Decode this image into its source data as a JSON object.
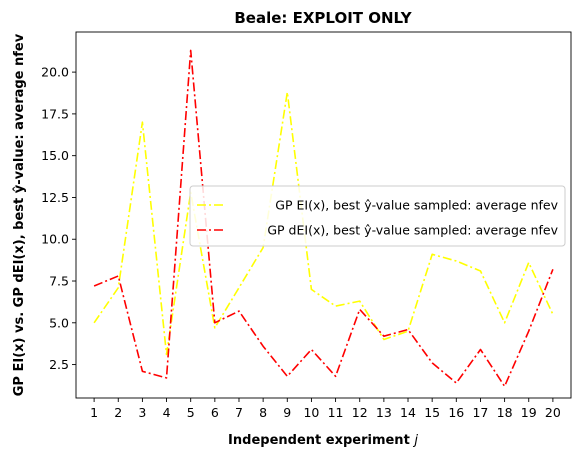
{
  "chart_data": {
    "type": "line",
    "title": "Beale: EXPLOIT ONLY",
    "xlabel": "Independent experiment j",
    "ylabel": "GP EI(x) vs. GP dEI(x), best ŷ-value: average nfev",
    "xlim": [
      0.25,
      20.75
    ],
    "ylim": [
      0.5,
      22.4
    ],
    "x": [
      1,
      2,
      3,
      4,
      5,
      6,
      7,
      8,
      9,
      10,
      11,
      12,
      13,
      14,
      15,
      16,
      17,
      18,
      19,
      20
    ],
    "xticks": [
      "1",
      "2",
      "3",
      "4",
      "5",
      "6",
      "7",
      "8",
      "9",
      "10",
      "11",
      "12",
      "13",
      "14",
      "15",
      "16",
      "17",
      "18",
      "19",
      "20"
    ],
    "yticks": [
      {
        "value": 2.5,
        "label": "2.5"
      },
      {
        "value": 5.0,
        "label": "5.0"
      },
      {
        "value": 7.5,
        "label": "7.5"
      },
      {
        "value": 10.0,
        "label": "10.0"
      },
      {
        "value": 12.5,
        "label": "12.5"
      },
      {
        "value": 15.0,
        "label": "15.0"
      },
      {
        "value": 17.5,
        "label": "17.5"
      },
      {
        "value": 20.0,
        "label": "20.0"
      }
    ],
    "legend_position": "center-right",
    "grid": false,
    "series": [
      {
        "name": "GP EI(x), best ŷ-value sampled: average nfev",
        "color": "#ffff00",
        "linestyle": "dashdot",
        "values": [
          5.0,
          7.1,
          17.0,
          3.1,
          12.8,
          4.7,
          7.1,
          9.5,
          18.8,
          7.0,
          6.0,
          6.3,
          4.0,
          4.5,
          9.1,
          8.7,
          8.1,
          5.0,
          8.6,
          5.5
        ]
      },
      {
        "name": "GP dEI(x), best ŷ-value sampled: average nfev",
        "color": "#ff0000",
        "linestyle": "dashdot",
        "values": [
          7.2,
          7.8,
          2.1,
          1.7,
          21.3,
          5.0,
          5.7,
          3.6,
          1.8,
          3.4,
          1.8,
          5.8,
          4.2,
          4.6,
          2.6,
          1.4,
          3.4,
          1.2,
          4.5,
          8.2
        ]
      }
    ]
  }
}
